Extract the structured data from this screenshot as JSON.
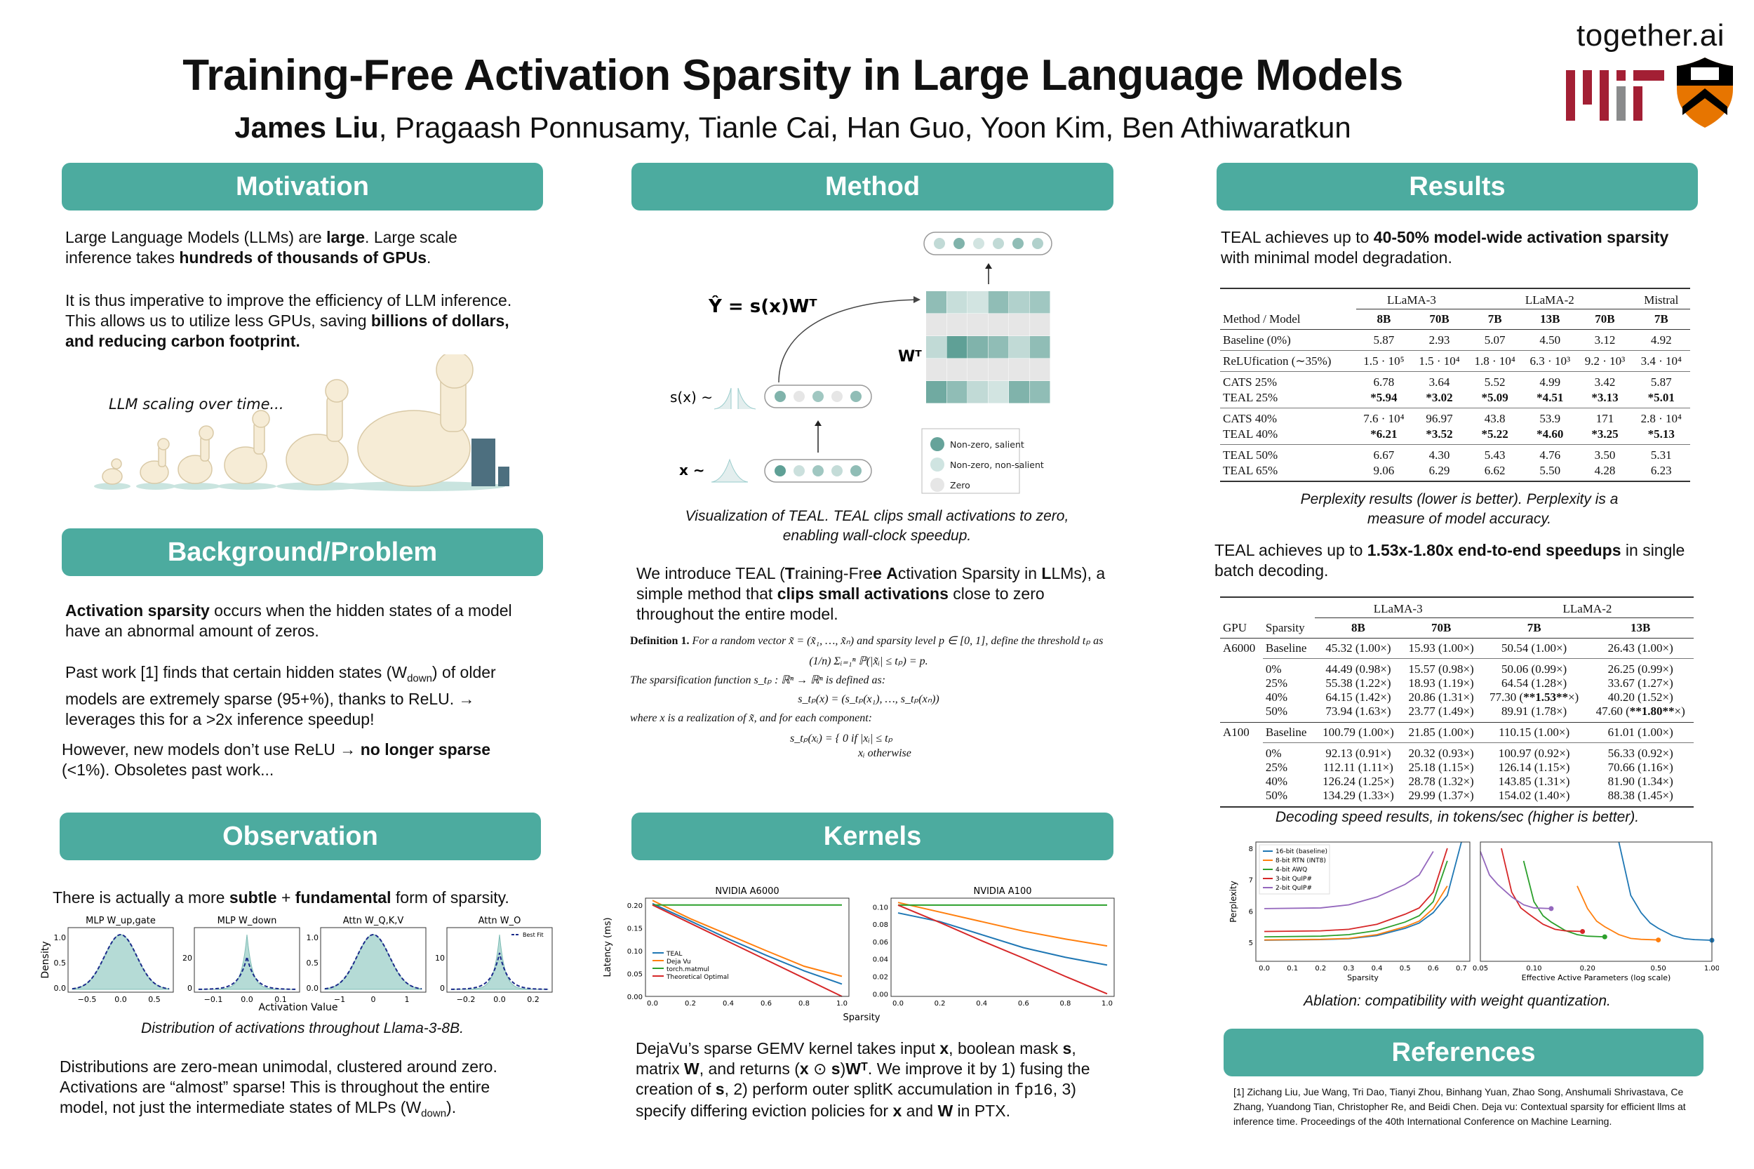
{
  "header": {
    "title": "Training-Free Activation Sparsity in Large Language Models",
    "first_author": "James Liu",
    "other_authors": ", Pragaash Ponnusamy, Tianle Cai, Han Guo, Yoon Kim, Ben Athiwaratkun",
    "logos": {
      "together": "together.ai",
      "mit": "MIT",
      "princeton": "VET TES EN NOV TAM TVM"
    },
    "accent_color": "#4cab9f"
  },
  "motivation": {
    "heading": "Motivation",
    "paragraphs": [
      [
        {
          "t": "Large Language Models (LLMs) are "
        },
        {
          "t": "large",
          "b": true
        },
        {
          "t": ". Large scale inference takes "
        },
        {
          "t": "hundreds of thousands of GPUs",
          "b": true
        },
        {
          "t": "."
        }
      ],
      [
        {
          "t": "It is thus imperative to improve the efficiency of LLM inference. This allows us to utilize less GPUs, saving "
        },
        {
          "t": "billions of dollars, and reducing carbon footprint.",
          "b": true
        }
      ]
    ],
    "image_caption": "LLM scaling over time..."
  },
  "background": {
    "heading": "Background/Problem",
    "paragraphs": [
      [
        {
          "t": "Activation sparsity",
          "b": true
        },
        {
          "t": " occurs when the hidden states of a model have an abnormal amount of zeros."
        }
      ],
      [
        {
          "t": "Past work [1] finds that certain hidden states (W"
        },
        {
          "t": "down",
          "sub": true
        },
        {
          "t": ") of older models are extremely sparse (95+%), thanks to ReLU. → leverages this for a >2x inference speedup!"
        }
      ],
      [
        {
          "t": "However, new models don’t use ReLU → "
        },
        {
          "t": "no longer sparse",
          "b": true
        },
        {
          "t": " (<1%). Obsoletes past work..."
        }
      ]
    ]
  },
  "observation": {
    "heading": "Observation",
    "intro": [
      {
        "t": "There is actually a more "
      },
      {
        "t": "subtle",
        "b": true
      },
      {
        "t": " + "
      },
      {
        "t": "fundamental",
        "b": true
      },
      {
        "t": " form of sparsity."
      }
    ],
    "caption": "Distribution of activations throughout Llama-3-8B.",
    "paragraph": [
      {
        "t": "Distributions are zero-mean unimodal, clustered around zero. Activations are “almost” sparse! This is throughout the entire model, not just the intermediate states of MLPs (W"
      },
      {
        "t": "down",
        "sub": true
      },
      {
        "t": ")."
      }
    ]
  },
  "method": {
    "heading": "Method",
    "figure": {
      "equation": "Ŷ = s(x)Wᵀ",
      "w_label": "Wᵀ",
      "sx_label": "s(x) ∼",
      "x_label": "x ∼",
      "legend": [
        "Non-zero, salient",
        "Non-zero, non-salient",
        "Zero"
      ],
      "output_levels": [
        1,
        3,
        0.5,
        1,
        2.5,
        1.5
      ],
      "sx_levels": [
        3,
        0,
        2,
        0,
        2.5
      ],
      "x_levels": [
        4,
        0.7,
        2,
        0.9,
        2.5
      ],
      "matrix_levels": [
        [
          2.5,
          0.8,
          0.5,
          2.5,
          1.5,
          2
        ],
        [
          0,
          0,
          0,
          0,
          0,
          0
        ],
        [
          1,
          4,
          3,
          2.5,
          1,
          2.5
        ],
        [
          0,
          0,
          0,
          0,
          0,
          0
        ],
        [
          3.5,
          2.5,
          1,
          0.5,
          3,
          2.5
        ]
      ]
    },
    "caption": "Visualization of TEAL. TEAL clips small activations to zero, enabling wall-clock speedup.",
    "paragraph": [
      {
        "t": "We introduce TEAL ("
      },
      {
        "t": "T",
        "b": true
      },
      {
        "t": "raining-Fre"
      },
      {
        "t": "e",
        "b": true
      },
      {
        "t": " "
      },
      {
        "t": "A",
        "b": true
      },
      {
        "t": "ctivation Sparsity in "
      },
      {
        "t": "L",
        "b": true
      },
      {
        "t": "LMs), a simple method that "
      },
      {
        "t": "clips small activations",
        "b": true
      },
      {
        "t": " close to zero throughout the entire model."
      }
    ],
    "definition": {
      "label": "Definition 1.",
      "line1": "For a random vector x̃ = (x̃₁, …, x̃ₙ) and sparsity level p ∈ [0, 1], define the threshold tₚ as",
      "eq1": "(1/n) Σᵢ₌₁ⁿ ℙ(|x̃ᵢ| ≤ tₚ) = p.",
      "line2": "The sparsification function s_tₚ : ℝⁿ → ℝⁿ is defined as:",
      "eq2": "s_tₚ(x) = (s_tₚ(x₁), …, s_tₚ(xₙ))",
      "line3": "where x is a realization of x̃, and for each component:",
      "eq3a": "s_tₚ(xᵢ) = { 0    if |xᵢ| ≤ tₚ",
      "eq3b": "xᵢ    otherwise"
    }
  },
  "kernels": {
    "heading": "Kernels",
    "paragraph": [
      {
        "t": "DejaVu’s sparse GEMV kernel takes input "
      },
      {
        "t": "x",
        "b": true
      },
      {
        "t": ", boolean mask "
      },
      {
        "t": "s",
        "b": true
      },
      {
        "t": ", matrix "
      },
      {
        "t": "W",
        "b": true
      },
      {
        "t": ", and returns ("
      },
      {
        "t": "x",
        "b": true
      },
      {
        "t": " ⊙ "
      },
      {
        "t": "s",
        "b": true
      },
      {
        "t": ")"
      },
      {
        "t": "W",
        "b": true
      },
      {
        "t": "ᵀ",
        "b": true
      },
      {
        "t": ". We improve it by 1) fusing the creation of "
      },
      {
        "t": "s",
        "b": true
      },
      {
        "t": ", 2) perform outer splitK accumulation in "
      },
      {
        "t": "fp16",
        "mono": true
      },
      {
        "t": ", 3) specify differing eviction policies for "
      },
      {
        "t": "x",
        "b": true
      },
      {
        "t": " and "
      },
      {
        "t": "W",
        "b": true
      },
      {
        "t": " in PTX."
      }
    ]
  },
  "results": {
    "heading": "Results",
    "intro": [
      {
        "t": "TEAL achieves up to "
      },
      {
        "t": "40-50% model-wide activation sparsity",
        "b": true
      },
      {
        "t": " with minimal model degradation."
      }
    ],
    "ppl_table": {
      "groups": [
        {
          "label": "LLaMA-3",
          "span": 2
        },
        {
          "label": "LLaMA-2",
          "span": 3
        },
        {
          "label": "Mistral",
          "span": 1
        }
      ],
      "columns": [
        "Method / Model",
        "8B",
        "70B",
        "7B",
        "13B",
        "70B",
        "7B"
      ],
      "row_groups": [
        [
          [
            "Baseline (0%)",
            "5.87",
            "2.93",
            "5.07",
            "4.50",
            "3.12",
            "4.92"
          ]
        ],
        [
          [
            "ReLUfication (∼35%)",
            "1.5 · 10⁵",
            "1.5 · 10⁴",
            "1.8 · 10⁴",
            "6.3 · 10³",
            "9.2 · 10³",
            "3.4 · 10⁴"
          ]
        ],
        [
          [
            "CATS 25%",
            "6.78",
            "3.64",
            "5.52",
            "4.99",
            "3.42",
            "5.87"
          ],
          [
            "TEAL 25%",
            "*5.94",
            "*3.02",
            "*5.09",
            "*4.51",
            "*3.13",
            "*5.01"
          ]
        ],
        [
          [
            "CATS 40%",
            "7.6 · 10⁴",
            "96.97",
            "43.8",
            "53.9",
            "171",
            "2.8 · 10⁴"
          ],
          [
            "TEAL 40%",
            "*6.21",
            "*3.52",
            "*5.22",
            "*4.60",
            "*3.25",
            "*5.13"
          ]
        ],
        [
          [
            "TEAL 50%",
            "6.67",
            "4.30",
            "5.43",
            "4.76",
            "3.50",
            "5.31"
          ],
          [
            "TEAL 65%",
            "9.06",
            "6.29",
            "6.62",
            "5.50",
            "4.28",
            "6.23"
          ]
        ]
      ]
    },
    "ppl_caption": "Perplexity results (lower is better). Perplexity is a measure of model accuracy.",
    "speed_intro": [
      {
        "t": "TEAL achieves up to "
      },
      {
        "t": "1.53x-1.80x end-to-end speedups",
        "b": true
      },
      {
        "t": " in single batch decoding."
      }
    ],
    "speed_table": {
      "groups": [
        {
          "label": "LLaMA-3",
          "span": 2
        },
        {
          "label": "LLaMA-2",
          "span": 2
        }
      ],
      "columns": [
        "GPU",
        "Sparsity",
        "8B",
        "70B",
        "7B",
        "13B"
      ],
      "gpus": [
        {
          "gpu": "A6000",
          "baseline": [
            "Baseline",
            "45.32 (1.00×)",
            "15.93 (1.00×)",
            "50.54 (1.00×)",
            "26.43 (1.00×)"
          ],
          "rows": [
            [
              "0%",
              "44.49 (0.98×)",
              "15.57 (0.98×)",
              "50.06 (0.99×)",
              "26.25 (0.99×)"
            ],
            [
              "25%",
              "55.38 (1.22×)",
              "18.93 (1.19×)",
              "64.54 (1.28×)",
              "33.67 (1.27×)"
            ],
            [
              "40%",
              "64.15 (1.42×)",
              "20.86 (1.31×)",
              "77.30 (**1.53**×)",
              "40.20 (1.52×)"
            ],
            [
              "50%",
              "73.94 (1.63×)",
              "23.77 (1.49×)",
              "89.91 (1.78×)",
              "47.60 (**1.80**×)"
            ]
          ]
        },
        {
          "gpu": "A100",
          "baseline": [
            "Baseline",
            "100.79 (1.00×)",
            "21.85 (1.00×)",
            "110.15 (1.00×)",
            "61.01 (1.00×)"
          ],
          "rows": [
            [
              "0%",
              "92.13 (0.91×)",
              "20.32 (0.93×)",
              "100.97 (0.92×)",
              "56.33 (0.92×)"
            ],
            [
              "25%",
              "112.11 (1.11×)",
              "25.18 (1.15×)",
              "126.14 (1.15×)",
              "70.66 (1.16×)"
            ],
            [
              "40%",
              "126.24 (1.25×)",
              "28.78 (1.32×)",
              "143.85 (1.31×)",
              "81.90 (1.34×)"
            ],
            [
              "50%",
              "134.29 (1.33×)",
              "29.99 (1.37×)",
              "154.02 (1.40×)",
              "88.38 (1.45×)"
            ]
          ]
        }
      ]
    },
    "speed_caption": "Decoding speed results, in tokens/sec (higher is better).",
    "ablation_caption": "Ablation: compatibility with weight quantization."
  },
  "references": {
    "heading": "References",
    "items": [
      "[1] Zichang Liu, Jue Wang, Tri Dao, Tianyi Zhou, Binhang Yuan, Zhao Song, Anshumali Shrivastava, Ce Zhang, Yuandong Tian, Christopher Re, and Beidi Chen. Deja vu: Contextual sparsity for efficient llms at inference time. Proceedings of the 40th International Conference on Machine Learning."
    ]
  },
  "chart_data": [
    {
      "type": "area",
      "id": "activation-distributions",
      "xlabel": "Activation Value",
      "ylabel": "Density",
      "legend": [
        "Best Fit"
      ],
      "panels": [
        {
          "title": "MLP W_up,gate",
          "shape": "gaussian",
          "xlim": [
            -0.8,
            0.8
          ],
          "peak": 1.3,
          "xticks": [
            "−0.5",
            "0.0",
            "0.5"
          ],
          "yticks": [
            "0.0",
            "0.5",
            "1.0"
          ]
        },
        {
          "title": "MLP W_down",
          "shape": "laplace",
          "xlim": [
            -0.13,
            0.13
          ],
          "peak": 32,
          "fit_peak": 19,
          "xticks": [
            "−0.1",
            "0.0",
            "0.1"
          ],
          "yticks": [
            "0",
            "20"
          ]
        },
        {
          "title": "Attn W_Q,K,V",
          "shape": "gaussian",
          "xlim": [
            -1.1,
            1.1
          ],
          "peak": 1.13,
          "xticks": [
            "−1",
            "0",
            "1"
          ],
          "yticks": [
            "0.0",
            "0.5",
            "1.0"
          ]
        },
        {
          "title": "Attn W_O",
          "shape": "laplace",
          "xlim": [
            -0.27,
            0.27
          ],
          "peak": 18,
          "fit_peak": 12,
          "xticks": [
            "−0.2",
            "0.0",
            "0.2"
          ],
          "yticks": [
            "0",
            "10"
          ]
        }
      ]
    },
    {
      "type": "line",
      "id": "kernel-latency",
      "xlabel": "Sparsity",
      "ylabel": "Latency (ms)",
      "x": [
        0,
        0.2,
        0.4,
        0.6,
        0.8,
        1.0
      ],
      "legend_placement": "center-left",
      "panels": [
        {
          "title": "NVIDIA A6000",
          "ylim": [
            0,
            0.215
          ],
          "yticks": [
            0,
            0.05,
            0.1,
            0.15,
            0.2
          ],
          "ytick_labels": [
            "0.00",
            "0.05",
            "0.10",
            "0.15",
            "0.20"
          ],
          "series": [
            {
              "name": "TEAL",
              "color": "#1f77b4",
              "values": [
                0.203,
                0.165,
                0.126,
                0.09,
                0.056,
                0.027
              ]
            },
            {
              "name": "Deja Vu",
              "color": "#ff7f0e",
              "values": [
                0.21,
                0.17,
                0.135,
                0.1,
                0.066,
                0.044
              ]
            },
            {
              "name": "torch.matmul",
              "color": "#2ca02c",
              "values": [
                0.2,
                0.2,
                0.2,
                0.2,
                0.2,
                0.2
              ]
            },
            {
              "name": "Theoretical Optimal",
              "color": "#d62728",
              "values": [
                0.2,
                0.16,
                0.12,
                0.08,
                0.04,
                0.0
              ]
            }
          ]
        },
        {
          "title": "NVIDIA A100",
          "ylim": [
            -0.003,
            0.11
          ],
          "yticks": [
            0,
            0.02,
            0.04,
            0.06,
            0.08,
            0.1
          ],
          "ytick_labels": [
            "0.00",
            "0.02",
            "0.04",
            "0.06",
            "0.08",
            "0.10"
          ],
          "series": [
            {
              "name": "TEAL",
              "color": "#1f77b4",
              "values": [
                0.093,
                0.083,
                0.068,
                0.053,
                0.042,
                0.033
              ]
            },
            {
              "name": "Deja Vu",
              "color": "#ff7f0e",
              "values": [
                0.105,
                0.094,
                0.083,
                0.072,
                0.063,
                0.055
              ]
            },
            {
              "name": "torch.matmul",
              "color": "#2ca02c",
              "values": [
                0.102,
                0.102,
                0.102,
                0.102,
                0.102,
                0.102
              ]
            },
            {
              "name": "Theoretical Optimal",
              "color": "#d62728",
              "values": [
                0.102,
                0.082,
                0.061,
                0.041,
                0.02,
                0.0
              ]
            }
          ]
        }
      ],
      "xtick_labels": [
        "0.0",
        "0.2",
        "0.4",
        "0.6",
        "0.8",
        "1.0"
      ]
    },
    {
      "type": "line",
      "id": "quantization-ablation",
      "ylabel": "Perplexity",
      "ylim": [
        4.4,
        8.2
      ],
      "yticks": [
        "5",
        "6",
        "7",
        "8"
      ],
      "left": {
        "xlabel": "Sparsity",
        "xlim": [
          -0.03,
          0.73
        ],
        "xtick_labels": [
          "0.0",
          "0.1",
          "0.2",
          "0.3",
          "0.4",
          "0.5",
          "0.6",
          "0.7"
        ]
      },
      "right": {
        "xlabel": "Effective Active Parameters (log scale)",
        "xlim": [
          0.05,
          1.0
        ],
        "scale": "log",
        "xtick_labels": [
          "0.05",
          "0.10",
          "0.20",
          "0.50",
          "1.00"
        ]
      },
      "legend_placement": "top-left",
      "sparsity": [
        0,
        0.2,
        0.3,
        0.4,
        0.5,
        0.55,
        0.6,
        0.65,
        0.7
      ],
      "series": [
        {
          "name": "16-bit (baseline)",
          "color": "#1f77b4",
          "param_fraction": 1.0,
          "values": [
            5.07,
            5.09,
            5.12,
            5.22,
            5.45,
            5.62,
            5.95,
            6.5,
            8.2
          ]
        },
        {
          "name": "8-bit RTN (INT8)",
          "color": "#ff7f0e",
          "param_fraction": 0.5,
          "values": [
            5.08,
            5.1,
            5.13,
            5.25,
            5.5,
            5.68,
            6.08,
            6.8,
            null
          ]
        },
        {
          "name": "4-bit AWQ",
          "color": "#2ca02c",
          "param_fraction": 0.25,
          "values": [
            5.18,
            5.2,
            5.25,
            5.38,
            5.65,
            5.85,
            6.3,
            7.6,
            null
          ]
        },
        {
          "name": "3-bit QuIP#",
          "color": "#d62728",
          "param_fraction": 0.1875,
          "values": [
            5.35,
            5.37,
            5.42,
            5.58,
            5.9,
            6.1,
            6.6,
            8.0,
            null
          ]
        },
        {
          "name": "2-bit QuIP#",
          "color": "#9467bd",
          "param_fraction": 0.125,
          "values": [
            6.08,
            6.1,
            6.2,
            6.45,
            6.85,
            7.15,
            7.9,
            null,
            null
          ]
        }
      ]
    }
  ]
}
